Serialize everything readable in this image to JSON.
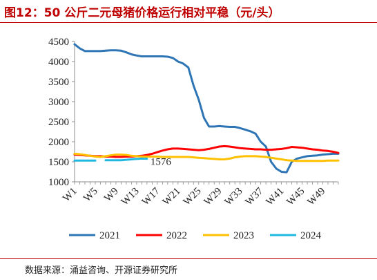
{
  "title": "图12：50 公斤二元母猪价格运行相对平稳（元/头）",
  "source": "数据来源：涌益咨询、开源证券研究所",
  "chart_data": {
    "type": "line",
    "title": "",
    "xlabel": "",
    "ylabel": "",
    "ylim": [
      1000,
      4500
    ],
    "yticks": [
      1000,
      1500,
      2000,
      2500,
      3000,
      3500,
      4000,
      4500
    ],
    "x": [
      1,
      2,
      3,
      4,
      5,
      6,
      7,
      8,
      9,
      10,
      11,
      12,
      13,
      14,
      15,
      16,
      17,
      18,
      19,
      20,
      21,
      22,
      23,
      24,
      25,
      26,
      27,
      28,
      29,
      30,
      31,
      32,
      33,
      34,
      35,
      36,
      37,
      38,
      39,
      40,
      41,
      42,
      43,
      44,
      45,
      46,
      47,
      48,
      49,
      50,
      51,
      52
    ],
    "xtick_labels": [
      "W1",
      "W5",
      "W9",
      "W13",
      "W17",
      "W21",
      "W25",
      "W29",
      "W33",
      "W37",
      "W41",
      "W45",
      "W49"
    ],
    "grid": false,
    "legend_position": "bottom",
    "annotations": [
      {
        "text": "1576",
        "x": 13,
        "y": 1576
      }
    ],
    "series": [
      {
        "name": "2021",
        "color": "#2e75b6",
        "values": [
          4430,
          4330,
          4260,
          4260,
          4260,
          4260,
          4270,
          4280,
          4280,
          4270,
          4230,
          4180,
          4150,
          4130,
          4130,
          4130,
          4130,
          4130,
          4120,
          4090,
          4000,
          3950,
          3850,
          3400,
          3050,
          2600,
          2380,
          2380,
          2390,
          2380,
          2370,
          2370,
          2340,
          2300,
          2260,
          2200,
          2000,
          1880,
          1500,
          1330,
          1250,
          1240,
          1500,
          1580,
          1610,
          1640,
          1650,
          1660,
          1680,
          1690,
          1700,
          1700
        ]
      },
      {
        "name": "2022",
        "color": "#ff0000",
        "values": [
          1680,
          1670,
          1660,
          1650,
          1640,
          1640,
          1630,
          1630,
          1620,
          1620,
          1630,
          1630,
          1640,
          1650,
          1670,
          1700,
          1740,
          1780,
          1810,
          1830,
          1830,
          1820,
          1810,
          1800,
          1790,
          1800,
          1820,
          1850,
          1880,
          1890,
          1880,
          1860,
          1840,
          1830,
          1820,
          1810,
          1810,
          1800,
          1800,
          1810,
          1820,
          1840,
          1870,
          1860,
          1850,
          1830,
          1810,
          1800,
          1780,
          1770,
          1750,
          1720
        ]
      },
      {
        "name": "2023",
        "color": "#ffc000",
        "values": [
          1700,
          1690,
          1670,
          1650,
          1630,
          1620,
          1640,
          1660,
          1680,
          1680,
          1670,
          1650,
          1640,
          1630,
          1630,
          1630,
          1630,
          1620,
          1620,
          1620,
          1620,
          1620,
          1620,
          1610,
          1600,
          1590,
          1580,
          1570,
          1560,
          1560,
          1580,
          1610,
          1630,
          1640,
          1640,
          1640,
          1630,
          1620,
          1600,
          1580,
          1560,
          1540,
          1530,
          1520,
          1520,
          1520,
          1520,
          1520,
          1520,
          1530,
          1530,
          1530
        ]
      },
      {
        "name": "2024",
        "color": "#1fb8e0",
        "values": [
          1530,
          1530,
          1530,
          1530,
          1530,
          null,
          1540,
          1540,
          1540,
          1540,
          1550,
          1560,
          1570,
          1580,
          1576,
          null,
          null,
          null,
          null,
          null,
          null,
          null,
          null,
          null,
          null,
          null,
          null,
          null,
          null,
          null,
          null,
          null,
          null,
          null,
          null,
          null,
          null,
          null,
          null,
          null,
          null,
          null,
          null,
          null,
          null,
          null,
          null,
          null,
          null,
          null,
          null,
          null
        ]
      }
    ]
  }
}
